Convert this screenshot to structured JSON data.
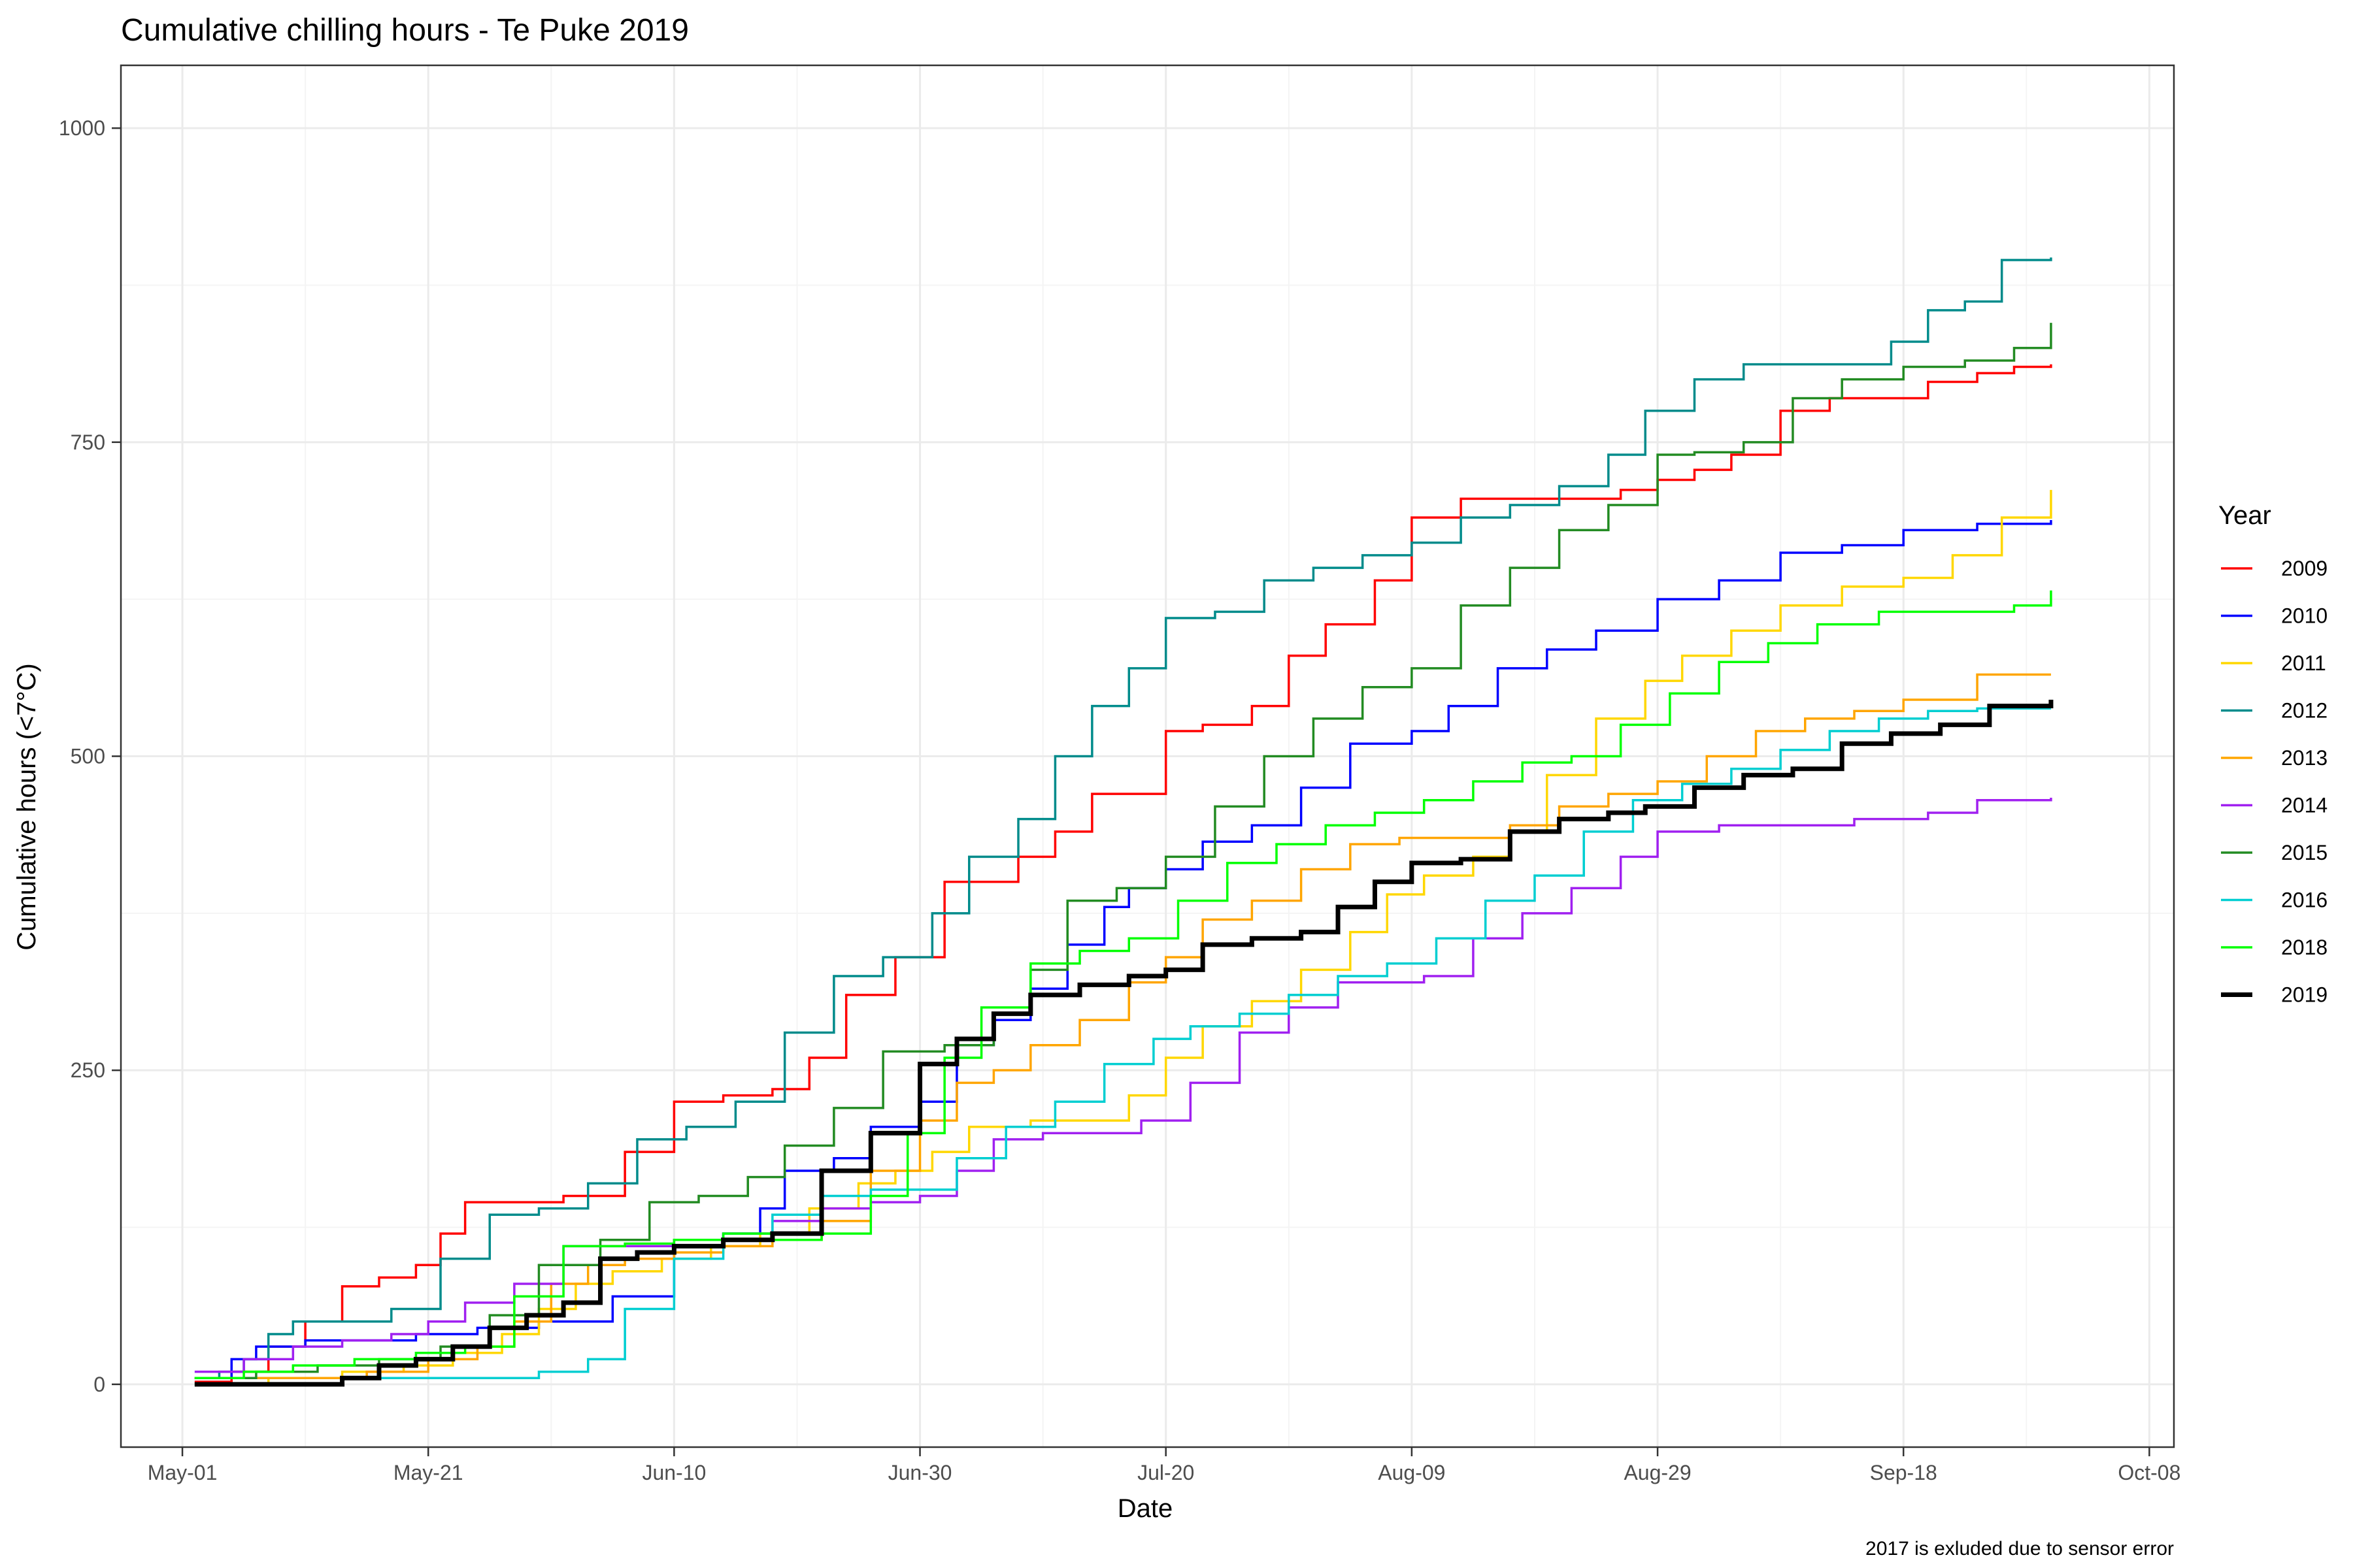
{
  "chart_data": {
    "type": "line",
    "step": true,
    "title": "Cumulative chilling hours - Te Puke 2019",
    "xlabel": "Date",
    "ylabel": "Cumulative hours (<7°C)",
    "caption": "2017 is exluded due to sensor error",
    "legend_title": "Year",
    "legend_position": "right",
    "grid": true,
    "x_date_origin": "2019-05-01",
    "xlim": [
      "2019-04-26",
      "2019-10-10"
    ],
    "ylim": [
      -50,
      1050
    ],
    "x_ticks": [
      {
        "date": "2019-05-01",
        "label": "May-01"
      },
      {
        "date": "2019-05-21",
        "label": "May-21"
      },
      {
        "date": "2019-06-10",
        "label": "Jun-10"
      },
      {
        "date": "2019-06-30",
        "label": "Jun-30"
      },
      {
        "date": "2019-07-20",
        "label": "Jul-20"
      },
      {
        "date": "2019-08-09",
        "label": "Aug-09"
      },
      {
        "date": "2019-08-29",
        "label": "Aug-29"
      },
      {
        "date": "2019-09-18",
        "label": "Sep-18"
      },
      {
        "date": "2019-10-08",
        "label": "Oct-08"
      }
    ],
    "y_ticks": [
      0,
      250,
      500,
      750,
      1000
    ],
    "y_tick_labels": [
      "0",
      "250",
      "500",
      "750",
      "1000"
    ],
    "series": [
      {
        "name": "2009",
        "color": "#ff0000",
        "width": 3.5,
        "x": [
          "2019-05-02",
          "2019-05-05",
          "2019-05-08",
          "2019-05-11",
          "2019-05-14",
          "2019-05-17",
          "2019-05-20",
          "2019-05-22",
          "2019-05-24",
          "2019-05-28",
          "2019-06-01",
          "2019-06-06",
          "2019-06-10",
          "2019-06-14",
          "2019-06-18",
          "2019-06-21",
          "2019-06-24",
          "2019-06-28",
          "2019-07-02",
          "2019-07-04",
          "2019-07-08",
          "2019-07-11",
          "2019-07-14",
          "2019-07-20",
          "2019-07-23",
          "2019-07-27",
          "2019-07-30",
          "2019-08-02",
          "2019-08-06",
          "2019-08-09",
          "2019-08-13",
          "2019-08-18",
          "2019-08-23",
          "2019-08-26",
          "2019-08-29",
          "2019-09-01",
          "2019-09-04",
          "2019-09-08",
          "2019-09-12",
          "2019-09-14",
          "2019-09-18",
          "2019-09-20",
          "2019-09-24",
          "2019-09-27",
          "2019-09-30"
        ],
        "y": [
          2,
          10,
          30,
          50,
          78,
          85,
          95,
          120,
          145,
          145,
          150,
          185,
          225,
          230,
          235,
          260,
          310,
          340,
          400,
          400,
          420,
          440,
          470,
          520,
          525,
          540,
          580,
          605,
          640,
          690,
          705,
          705,
          705,
          712,
          720,
          728,
          740,
          775,
          785,
          785,
          785,
          798,
          805,
          810,
          812
        ]
      },
      {
        "name": "2010",
        "color": "#0000ff",
        "width": 3.5,
        "x": [
          "2019-05-02",
          "2019-05-05",
          "2019-05-07",
          "2019-05-11",
          "2019-05-14",
          "2019-05-17",
          "2019-05-20",
          "2019-05-25",
          "2019-05-30",
          "2019-06-05",
          "2019-06-10",
          "2019-06-14",
          "2019-06-17",
          "2019-06-19",
          "2019-06-23",
          "2019-06-26",
          "2019-06-30",
          "2019-07-03",
          "2019-07-06",
          "2019-07-09",
          "2019-07-12",
          "2019-07-15",
          "2019-07-17",
          "2019-07-20",
          "2019-07-23",
          "2019-07-27",
          "2019-07-31",
          "2019-08-04",
          "2019-08-09",
          "2019-08-12",
          "2019-08-16",
          "2019-08-20",
          "2019-08-24",
          "2019-08-29",
          "2019-09-03",
          "2019-09-08",
          "2019-09-13",
          "2019-09-18",
          "2019-09-24",
          "2019-09-30"
        ],
        "y": [
          5,
          20,
          30,
          35,
          35,
          35,
          40,
          45,
          50,
          70,
          110,
          120,
          140,
          170,
          180,
          205,
          225,
          270,
          290,
          315,
          350,
          380,
          395,
          410,
          432,
          445,
          475,
          510,
          520,
          540,
          570,
          585,
          600,
          625,
          640,
          662,
          668,
          680,
          685,
          688
        ]
      },
      {
        "name": "2011",
        "color": "#ffd700",
        "width": 3.5,
        "x": [
          "2019-05-02",
          "2019-05-08",
          "2019-05-14",
          "2019-05-19",
          "2019-05-23",
          "2019-05-27",
          "2019-05-30",
          "2019-06-02",
          "2019-06-05",
          "2019-06-09",
          "2019-06-13",
          "2019-06-17",
          "2019-06-21",
          "2019-06-25",
          "2019-06-28",
          "2019-07-01",
          "2019-07-04",
          "2019-07-09",
          "2019-07-13",
          "2019-07-17",
          "2019-07-20",
          "2019-07-23",
          "2019-07-27",
          "2019-07-31",
          "2019-08-04",
          "2019-08-07",
          "2019-08-10",
          "2019-08-14",
          "2019-08-17",
          "2019-08-20",
          "2019-08-24",
          "2019-08-28",
          "2019-08-31",
          "2019-09-04",
          "2019-09-08",
          "2019-09-13",
          "2019-09-18",
          "2019-09-22",
          "2019-09-26",
          "2019-09-30"
        ],
        "y": [
          0,
          5,
          10,
          15,
          25,
          40,
          60,
          80,
          90,
          100,
          110,
          120,
          140,
          160,
          170,
          185,
          205,
          210,
          210,
          230,
          260,
          285,
          305,
          330,
          360,
          390,
          405,
          420,
          440,
          485,
          530,
          560,
          580,
          600,
          620,
          635,
          642,
          660,
          690,
          712
        ]
      },
      {
        "name": "2012",
        "color": "#008b8b",
        "width": 3.5,
        "x": [
          "2019-05-02",
          "2019-05-04",
          "2019-05-06",
          "2019-05-08",
          "2019-05-10",
          "2019-05-14",
          "2019-05-18",
          "2019-05-22",
          "2019-05-26",
          "2019-05-30",
          "2019-06-03",
          "2019-06-07",
          "2019-06-11",
          "2019-06-15",
          "2019-06-19",
          "2019-06-23",
          "2019-06-27",
          "2019-07-01",
          "2019-07-04",
          "2019-07-08",
          "2019-07-11",
          "2019-07-14",
          "2019-07-17",
          "2019-07-20",
          "2019-07-24",
          "2019-07-28",
          "2019-08-01",
          "2019-08-05",
          "2019-08-09",
          "2019-08-13",
          "2019-08-17",
          "2019-08-21",
          "2019-08-25",
          "2019-08-28",
          "2019-09-01",
          "2019-09-05",
          "2019-09-09",
          "2019-09-13",
          "2019-09-17",
          "2019-09-20",
          "2019-09-23",
          "2019-09-26",
          "2019-09-30"
        ],
        "y": [
          5,
          10,
          20,
          40,
          50,
          50,
          60,
          100,
          135,
          140,
          160,
          195,
          205,
          225,
          280,
          325,
          340,
          375,
          420,
          450,
          500,
          540,
          570,
          610,
          615,
          640,
          650,
          660,
          670,
          690,
          700,
          715,
          740,
          775,
          800,
          812,
          812,
          812,
          830,
          855,
          862,
          895,
          897
        ]
      },
      {
        "name": "2013",
        "color": "#ffa500",
        "width": 3.5,
        "x": [
          "2019-05-02",
          "2019-05-09",
          "2019-05-16",
          "2019-05-21",
          "2019-05-25",
          "2019-05-28",
          "2019-05-31",
          "2019-06-03",
          "2019-06-06",
          "2019-06-10",
          "2019-06-14",
          "2019-06-18",
          "2019-06-22",
          "2019-06-26",
          "2019-06-30",
          "2019-07-03",
          "2019-07-06",
          "2019-07-09",
          "2019-07-13",
          "2019-07-17",
          "2019-07-20",
          "2019-07-23",
          "2019-07-27",
          "2019-07-31",
          "2019-08-04",
          "2019-08-08",
          "2019-08-13",
          "2019-08-17",
          "2019-08-21",
          "2019-08-25",
          "2019-08-29",
          "2019-09-02",
          "2019-09-06",
          "2019-09-10",
          "2019-09-14",
          "2019-09-18",
          "2019-09-24",
          "2019-09-30"
        ],
        "y": [
          5,
          5,
          10,
          20,
          30,
          50,
          80,
          95,
          100,
          105,
          110,
          115,
          130,
          170,
          210,
          240,
          250,
          270,
          290,
          320,
          340,
          370,
          385,
          410,
          430,
          435,
          435,
          445,
          460,
          470,
          480,
          500,
          520,
          530,
          536,
          545,
          565,
          565
        ]
      },
      {
        "name": "2014",
        "color": "#a020f0",
        "width": 3.5,
        "x": [
          "2019-05-02",
          "2019-05-06",
          "2019-05-10",
          "2019-05-14",
          "2019-05-18",
          "2019-05-21",
          "2019-05-24",
          "2019-05-28",
          "2019-06-01",
          "2019-06-06",
          "2019-06-10",
          "2019-06-14",
          "2019-06-18",
          "2019-06-22",
          "2019-06-26",
          "2019-06-30",
          "2019-07-03",
          "2019-07-06",
          "2019-07-10",
          "2019-07-14",
          "2019-07-18",
          "2019-07-22",
          "2019-07-26",
          "2019-07-30",
          "2019-08-03",
          "2019-08-07",
          "2019-08-10",
          "2019-08-14",
          "2019-08-18",
          "2019-08-22",
          "2019-08-26",
          "2019-08-29",
          "2019-09-03",
          "2019-09-08",
          "2019-09-14",
          "2019-09-20",
          "2019-09-24",
          "2019-09-30"
        ],
        "y": [
          10,
          20,
          30,
          35,
          40,
          50,
          65,
          80,
          110,
          110,
          115,
          120,
          130,
          140,
          145,
          150,
          170,
          195,
          200,
          200,
          210,
          240,
          280,
          300,
          320,
          320,
          325,
          355,
          375,
          395,
          420,
          440,
          445,
          445,
          450,
          455,
          465,
          467
        ]
      },
      {
        "name": "2015",
        "color": "#228b22",
        "width": 3.5,
        "x": [
          "2019-05-02",
          "2019-05-07",
          "2019-05-12",
          "2019-05-17",
          "2019-05-22",
          "2019-05-26",
          "2019-05-30",
          "2019-06-04",
          "2019-06-08",
          "2019-06-12",
          "2019-06-16",
          "2019-06-19",
          "2019-06-23",
          "2019-06-27",
          "2019-07-02",
          "2019-07-06",
          "2019-07-09",
          "2019-07-12",
          "2019-07-16",
          "2019-07-20",
          "2019-07-24",
          "2019-07-28",
          "2019-08-01",
          "2019-08-05",
          "2019-08-09",
          "2019-08-13",
          "2019-08-17",
          "2019-08-21",
          "2019-08-25",
          "2019-08-29",
          "2019-09-01",
          "2019-09-05",
          "2019-09-09",
          "2019-09-13",
          "2019-09-18",
          "2019-09-23",
          "2019-09-27",
          "2019-09-30"
        ],
        "y": [
          5,
          10,
          15,
          20,
          30,
          55,
          95,
          115,
          145,
          150,
          165,
          190,
          220,
          265,
          270,
          295,
          330,
          385,
          395,
          420,
          460,
          500,
          530,
          555,
          570,
          620,
          650,
          680,
          700,
          740,
          742,
          750,
          785,
          800,
          810,
          815,
          825,
          845
        ]
      },
      {
        "name": "2016",
        "color": "#00ced1",
        "width": 3.5,
        "x": [
          "2019-05-02",
          "2019-05-08",
          "2019-05-14",
          "2019-05-20",
          "2019-05-25",
          "2019-05-30",
          "2019-06-03",
          "2019-06-06",
          "2019-06-10",
          "2019-06-14",
          "2019-06-18",
          "2019-06-22",
          "2019-06-26",
          "2019-06-30",
          "2019-07-03",
          "2019-07-07",
          "2019-07-11",
          "2019-07-15",
          "2019-07-19",
          "2019-07-22",
          "2019-07-26",
          "2019-07-30",
          "2019-08-03",
          "2019-08-07",
          "2019-08-11",
          "2019-08-15",
          "2019-08-19",
          "2019-08-23",
          "2019-08-27",
          "2019-08-31",
          "2019-09-04",
          "2019-09-08",
          "2019-09-12",
          "2019-09-16",
          "2019-09-20",
          "2019-09-24",
          "2019-09-30"
        ],
        "y": [
          0,
          0,
          5,
          5,
          5,
          10,
          20,
          60,
          100,
          120,
          135,
          150,
          155,
          155,
          180,
          205,
          225,
          255,
          275,
          285,
          295,
          310,
          325,
          335,
          355,
          385,
          405,
          440,
          465,
          478,
          490,
          505,
          520,
          530,
          536,
          538,
          538
        ]
      },
      {
        "name": "2018",
        "color": "#00ff00",
        "width": 3.5,
        "x": [
          "2019-05-02",
          "2019-05-06",
          "2019-05-10",
          "2019-05-15",
          "2019-05-20",
          "2019-05-24",
          "2019-05-28",
          "2019-06-01",
          "2019-06-06",
          "2019-06-10",
          "2019-06-14",
          "2019-06-18",
          "2019-06-22",
          "2019-06-26",
          "2019-06-29",
          "2019-07-02",
          "2019-07-05",
          "2019-07-09",
          "2019-07-13",
          "2019-07-17",
          "2019-07-21",
          "2019-07-25",
          "2019-07-29",
          "2019-08-02",
          "2019-08-06",
          "2019-08-10",
          "2019-08-14",
          "2019-08-18",
          "2019-08-22",
          "2019-08-26",
          "2019-08-30",
          "2019-09-03",
          "2019-09-07",
          "2019-09-11",
          "2019-09-16",
          "2019-09-22",
          "2019-09-27",
          "2019-09-30"
        ],
        "y": [
          5,
          10,
          15,
          20,
          25,
          30,
          70,
          110,
          112,
          115,
          120,
          115,
          120,
          150,
          200,
          260,
          300,
          335,
          345,
          355,
          385,
          415,
          430,
          445,
          455,
          465,
          480,
          495,
          500,
          525,
          550,
          575,
          590,
          605,
          615,
          615,
          620,
          632
        ]
      },
      {
        "name": "2019",
        "color": "#000000",
        "width": 7,
        "x": [
          "2019-05-02",
          "2019-05-08",
          "2019-05-14",
          "2019-05-17",
          "2019-05-20",
          "2019-05-23",
          "2019-05-26",
          "2019-05-29",
          "2019-06-01",
          "2019-06-04",
          "2019-06-07",
          "2019-06-10",
          "2019-06-14",
          "2019-06-18",
          "2019-06-22",
          "2019-06-26",
          "2019-06-30",
          "2019-07-03",
          "2019-07-06",
          "2019-07-09",
          "2019-07-13",
          "2019-07-17",
          "2019-07-20",
          "2019-07-23",
          "2019-07-27",
          "2019-07-31",
          "2019-08-03",
          "2019-08-06",
          "2019-08-09",
          "2019-08-13",
          "2019-08-17",
          "2019-08-21",
          "2019-08-25",
          "2019-08-28",
          "2019-09-01",
          "2019-09-05",
          "2019-09-09",
          "2019-09-13",
          "2019-09-17",
          "2019-09-21",
          "2019-09-25",
          "2019-09-30"
        ],
        "y": [
          0,
          0,
          5,
          15,
          20,
          30,
          45,
          55,
          65,
          100,
          105,
          110,
          115,
          120,
          170,
          200,
          255,
          275,
          295,
          310,
          318,
          325,
          330,
          350,
          355,
          360,
          380,
          400,
          415,
          418,
          440,
          450,
          455,
          460,
          475,
          485,
          490,
          510,
          518,
          525,
          540,
          545
        ]
      }
    ]
  }
}
